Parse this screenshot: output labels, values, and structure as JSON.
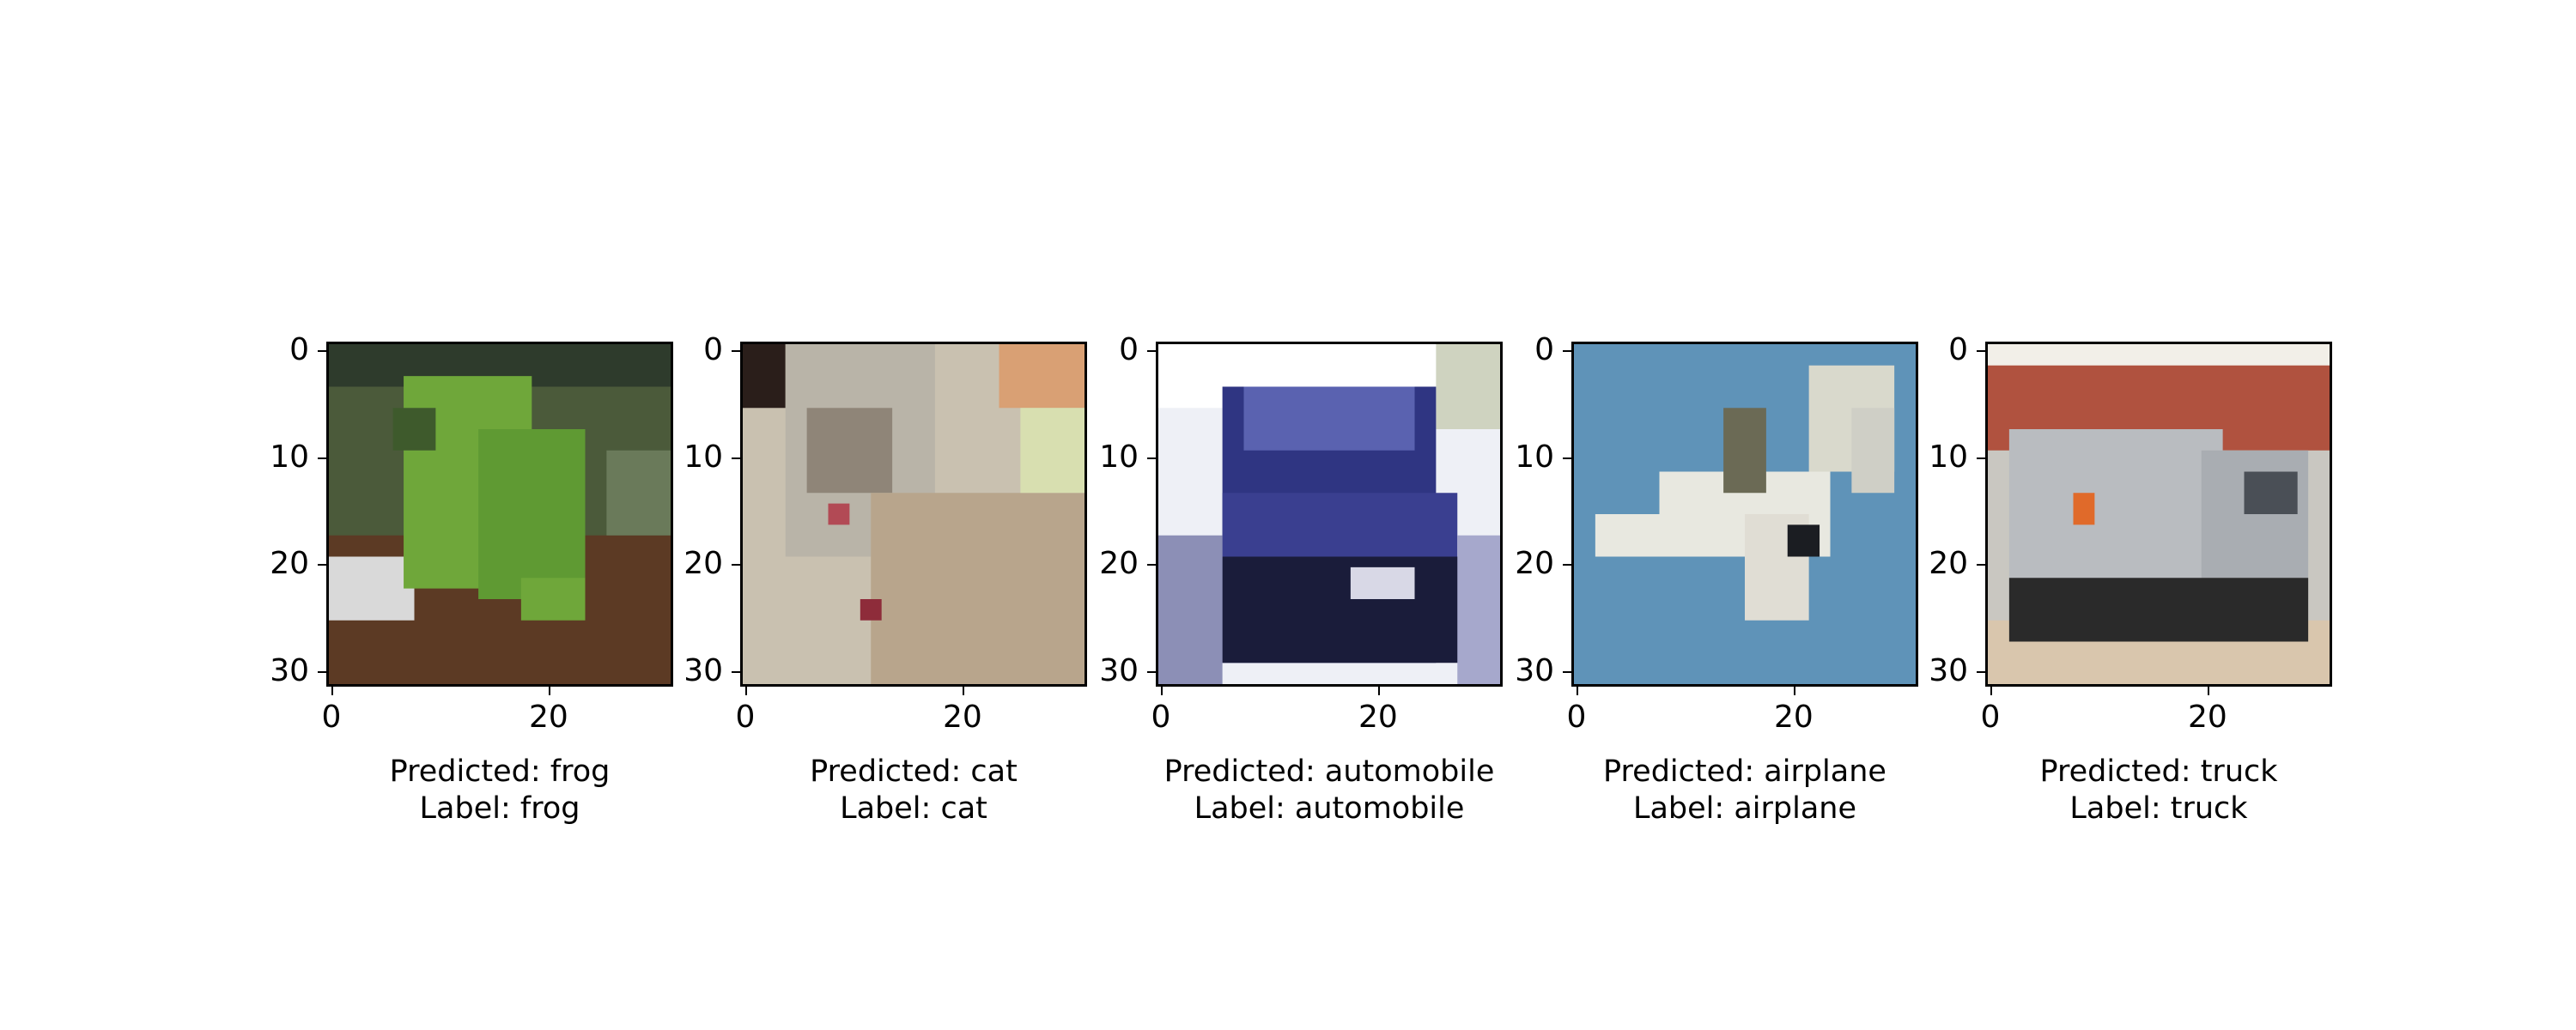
{
  "figure": {
    "panels": [
      {
        "predicted_prefix": "Predicted: ",
        "predicted": "frog",
        "label_prefix": "Label: ",
        "label": "frog",
        "image_subject": "green frog on rock",
        "palette": [
          "#6fa73a",
          "#3e5a2c",
          "#5c3a24",
          "#d9d9d9"
        ]
      },
      {
        "predicted_prefix": "Predicted: ",
        "predicted": "cat",
        "label_prefix": "Label: ",
        "label": "cat",
        "image_subject": "tabby cat",
        "palette": [
          "#c9c1b0",
          "#8f8578",
          "#d9a074",
          "#2a1e1a"
        ]
      },
      {
        "predicted_prefix": "Predicted: ",
        "predicted": "automobile",
        "label_prefix": "Label: ",
        "label": "automobile",
        "image_subject": "blue car front",
        "palette": [
          "#2f3582",
          "#1a1c3a",
          "#eef0f6",
          "#8c8fb6"
        ]
      },
      {
        "predicted_prefix": "Predicted: ",
        "predicted": "airplane",
        "label_prefix": "Label: ",
        "label": "airplane",
        "image_subject": "jet fighter in blue sky",
        "palette": [
          "#5f93b8",
          "#e8e8e0",
          "#6b6a55",
          "#1b1d22"
        ]
      },
      {
        "predicted_prefix": "Predicted: ",
        "predicted": "truck",
        "label_prefix": "Label: ",
        "label": "truck",
        "image_subject": "grey truck with red building",
        "palette": [
          "#b9bcc0",
          "#2a2a2a",
          "#b0523f",
          "#e06a2a"
        ]
      }
    ],
    "yticks": [
      "0",
      "10",
      "20",
      "30"
    ],
    "xticks": [
      "0",
      "20"
    ]
  }
}
